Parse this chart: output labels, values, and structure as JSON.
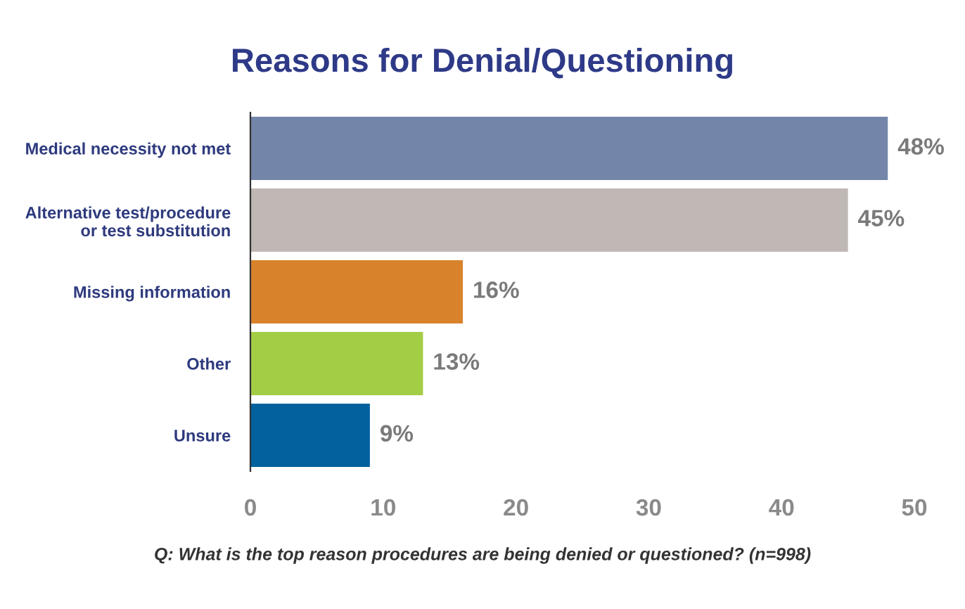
{
  "chart_data": {
    "type": "bar",
    "orientation": "horizontal",
    "title": "Reasons for Denial/Questioning",
    "categories": [
      "Medical necessity not met",
      "Alternative test/procedure\nor test substitution",
      "Missing information",
      "Other",
      "Unsure"
    ],
    "values": [
      48,
      45,
      16,
      13,
      9
    ],
    "colors": [
      "#7386a9",
      "#bfb8b4",
      "#d8832c",
      "#a4cd46",
      "#03619d"
    ],
    "value_labels": [
      "48%",
      "45%",
      "16%",
      "13%",
      "9%"
    ],
    "xlim": [
      0,
      50
    ],
    "xticks": [
      0,
      10,
      20,
      30,
      40,
      50
    ],
    "grid": false,
    "legend": false,
    "annotations": [
      "Q: What is the top reason procedures are being denied or questioned? (n=998)"
    ]
  }
}
